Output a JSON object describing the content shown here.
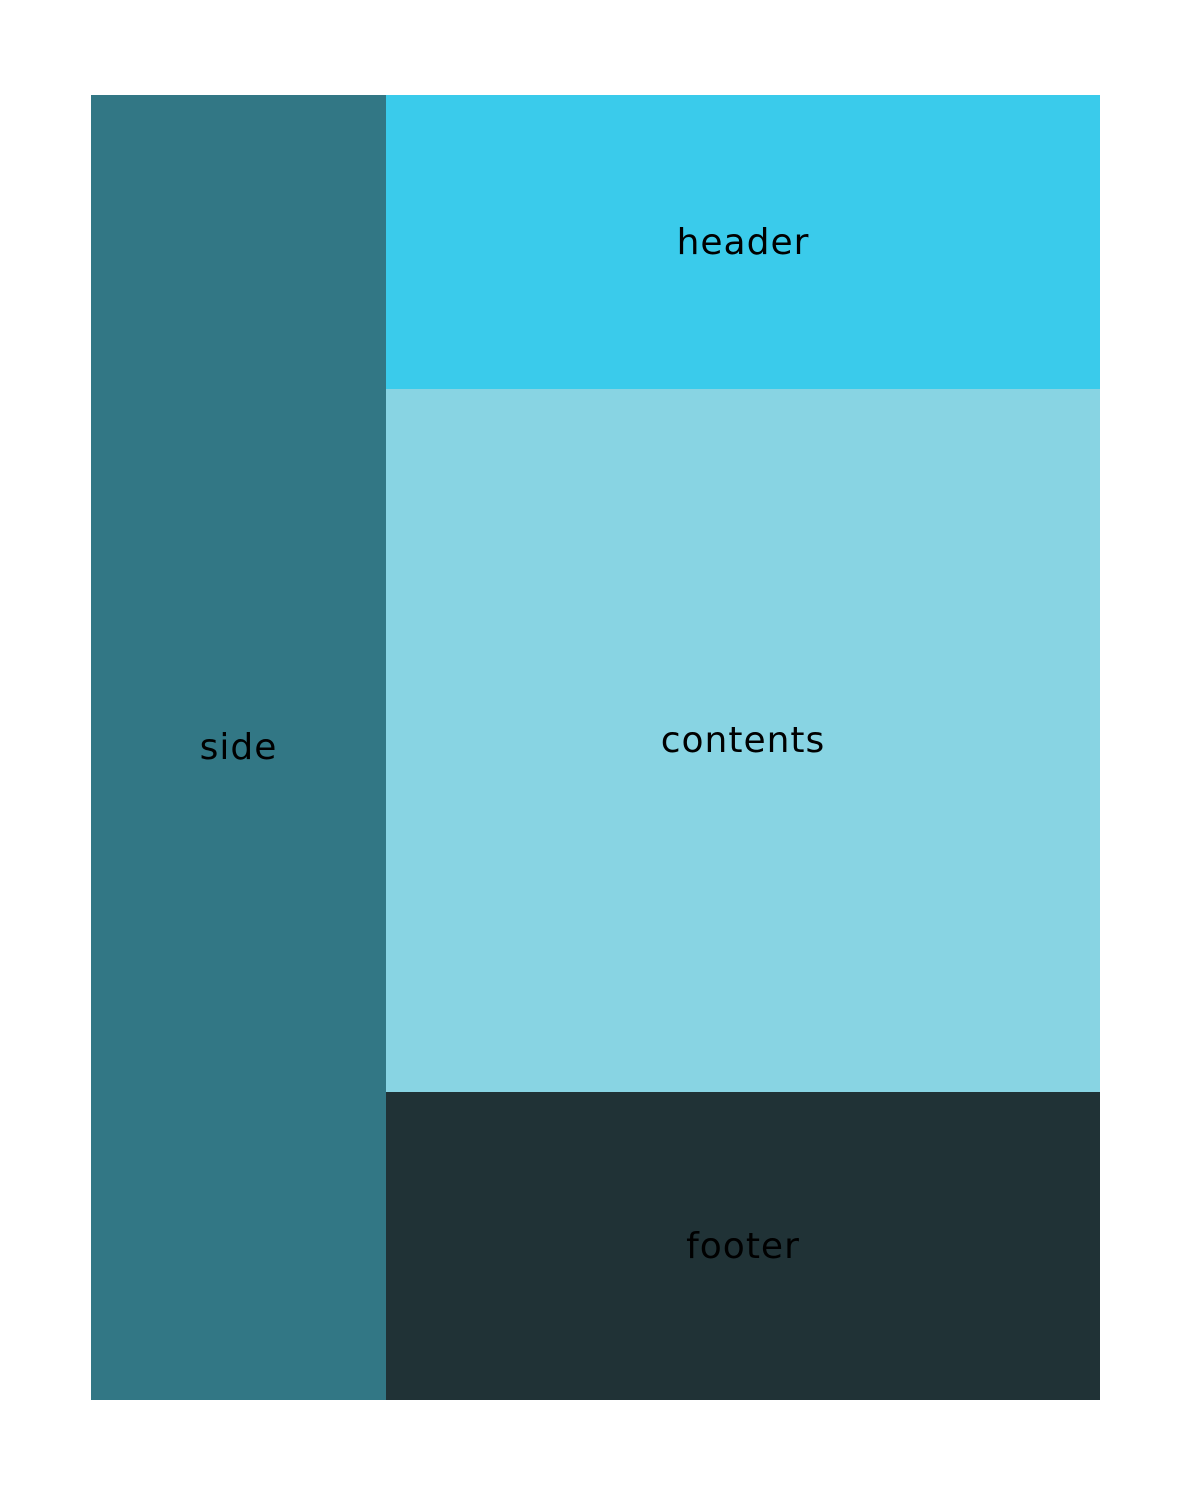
{
  "regions": {
    "side": {
      "label": "side",
      "color": "#327785"
    },
    "header": {
      "label": "header",
      "color": "#3acbeb"
    },
    "contents": {
      "label": "contents",
      "color": "#88d4e3"
    },
    "footer": {
      "label": "footer",
      "color": "#203236"
    }
  }
}
